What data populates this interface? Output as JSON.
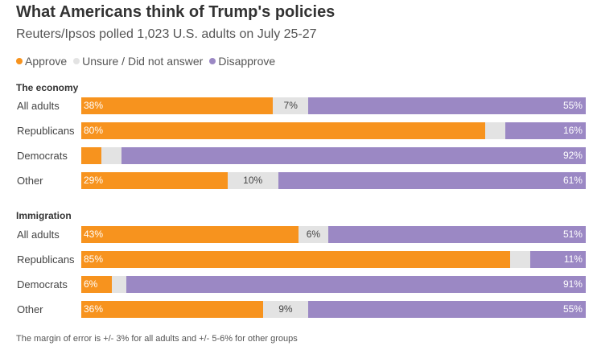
{
  "chart_data": {
    "type": "bar",
    "stacked": true,
    "orientation": "horizontal",
    "title": "What Americans think of Trump's policies",
    "subtitle": "Reuters/Ipsos polled 1,023 U.S. adults on July 25-27",
    "legend": [
      "Approve",
      "Unsure / Did not answer",
      "Disapprove"
    ],
    "colors": {
      "approve": "#f7931e",
      "unsure": "#e3e3e3",
      "disapprove": "#9b88c4"
    },
    "groups": [
      {
        "name": "The economy",
        "rows": [
          {
            "label": "All adults",
            "approve": 38,
            "unsure": 7,
            "disapprove": 55,
            "approve_label": "38%",
            "unsure_label": "7%",
            "disapprove_label": "55%"
          },
          {
            "label": "Republicans",
            "approve": 80,
            "unsure": 4,
            "disapprove": 16,
            "approve_label": "80%",
            "unsure_label": "",
            "disapprove_label": "16%"
          },
          {
            "label": "Democrats",
            "approve": 4,
            "unsure": 4,
            "disapprove": 92,
            "approve_label": "",
            "unsure_label": "",
            "disapprove_label": "92%"
          },
          {
            "label": "Other",
            "approve": 29,
            "unsure": 10,
            "disapprove": 61,
            "approve_label": "29%",
            "unsure_label": "10%",
            "disapprove_label": "61%"
          }
        ]
      },
      {
        "name": "Immigration",
        "rows": [
          {
            "label": "All adults",
            "approve": 43,
            "unsure": 6,
            "disapprove": 51,
            "approve_label": "43%",
            "unsure_label": "6%",
            "disapprove_label": "51%"
          },
          {
            "label": "Republicans",
            "approve": 85,
            "unsure": 4,
            "disapprove": 11,
            "approve_label": "85%",
            "unsure_label": "",
            "disapprove_label": "11%"
          },
          {
            "label": "Democrats",
            "approve": 6,
            "unsure": 3,
            "disapprove": 91,
            "approve_label": "6%",
            "unsure_label": "",
            "disapprove_label": "91%"
          },
          {
            "label": "Other",
            "approve": 36,
            "unsure": 9,
            "disapprove": 55,
            "approve_label": "36%",
            "unsure_label": "9%",
            "disapprove_label": "55%"
          }
        ]
      }
    ],
    "footnote": "The margin of error is +/- 3% for all adults and +/- 5-6% for other groups"
  }
}
